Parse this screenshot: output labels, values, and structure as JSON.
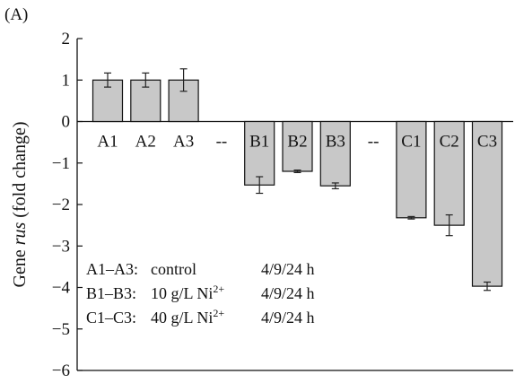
{
  "panel_label": "(A)",
  "chart_data": {
    "type": "bar",
    "categories": [
      "A1",
      "A2",
      "A3",
      "--",
      "B1",
      "B2",
      "B3",
      "--",
      "C1",
      "C2",
      "C3"
    ],
    "values": [
      1.0,
      1.0,
      1.0,
      null,
      -1.53,
      -1.2,
      -1.55,
      null,
      -2.32,
      -2.5,
      -3.97
    ],
    "errors": [
      0.17,
      0.17,
      0.27,
      null,
      0.2,
      0.03,
      0.07,
      null,
      0.03,
      0.25,
      0.1
    ],
    "ylabel": {
      "prefix": "Gene ",
      "italic": "rus",
      "suffix": " (fold change)"
    },
    "ylim": [
      -6,
      2
    ],
    "yticks": [
      2,
      1,
      0,
      -1,
      -2,
      -3,
      -4,
      -5,
      -6
    ],
    "bar_color": "#c8c8c8",
    "legend_lines": [
      {
        "group": "A1–A3:",
        "treatment": "control",
        "sup": "",
        "times": "4/9/24 h"
      },
      {
        "group": "B1–B3:",
        "treatment": "10 g/L Ni",
        "sup": "2+",
        "times": "4/9/24 h"
      },
      {
        "group": "C1–C3:",
        "treatment": "40 g/L Ni",
        "sup": "2+",
        "times": "4/9/24 h"
      }
    ]
  }
}
